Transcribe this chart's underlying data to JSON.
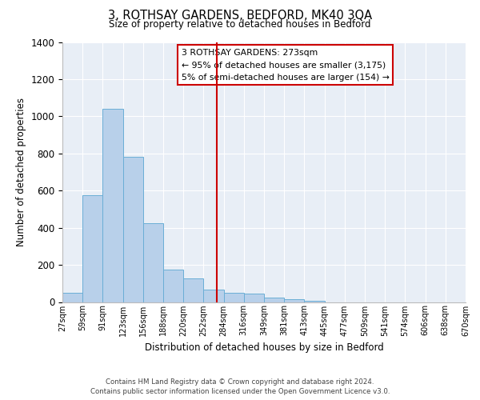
{
  "title": "3, ROTHSAY GARDENS, BEDFORD, MK40 3QA",
  "subtitle": "Size of property relative to detached houses in Bedford",
  "xlabel": "Distribution of detached houses by size in Bedford",
  "ylabel": "Number of detached properties",
  "bin_labels": [
    "27sqm",
    "59sqm",
    "91sqm",
    "123sqm",
    "156sqm",
    "188sqm",
    "220sqm",
    "252sqm",
    "284sqm",
    "316sqm",
    "349sqm",
    "381sqm",
    "413sqm",
    "445sqm",
    "477sqm",
    "509sqm",
    "541sqm",
    "574sqm",
    "606sqm",
    "638sqm",
    "670sqm"
  ],
  "bar_heights": [
    50,
    575,
    1040,
    780,
    425,
    175,
    125,
    65,
    50,
    45,
    25,
    15,
    5,
    0,
    0,
    0,
    0,
    0,
    0,
    0
  ],
  "bar_color": "#b8d0ea",
  "bar_edge_color": "#6aaed6",
  "background_color": "#e8eef6",
  "grid_color": "#ffffff",
  "vline_color": "#cc0000",
  "ylim": [
    0,
    1400
  ],
  "yticks": [
    0,
    200,
    400,
    600,
    800,
    1000,
    1200,
    1400
  ],
  "annotation_title": "3 ROTHSAY GARDENS: 273sqm",
  "annotation_line1": "← 95% of detached houses are smaller (3,175)",
  "annotation_line2": "5% of semi-detached houses are larger (154) →",
  "footer_line1": "Contains HM Land Registry data © Crown copyright and database right 2024.",
  "footer_line2": "Contains public sector information licensed under the Open Government Licence v3.0."
}
